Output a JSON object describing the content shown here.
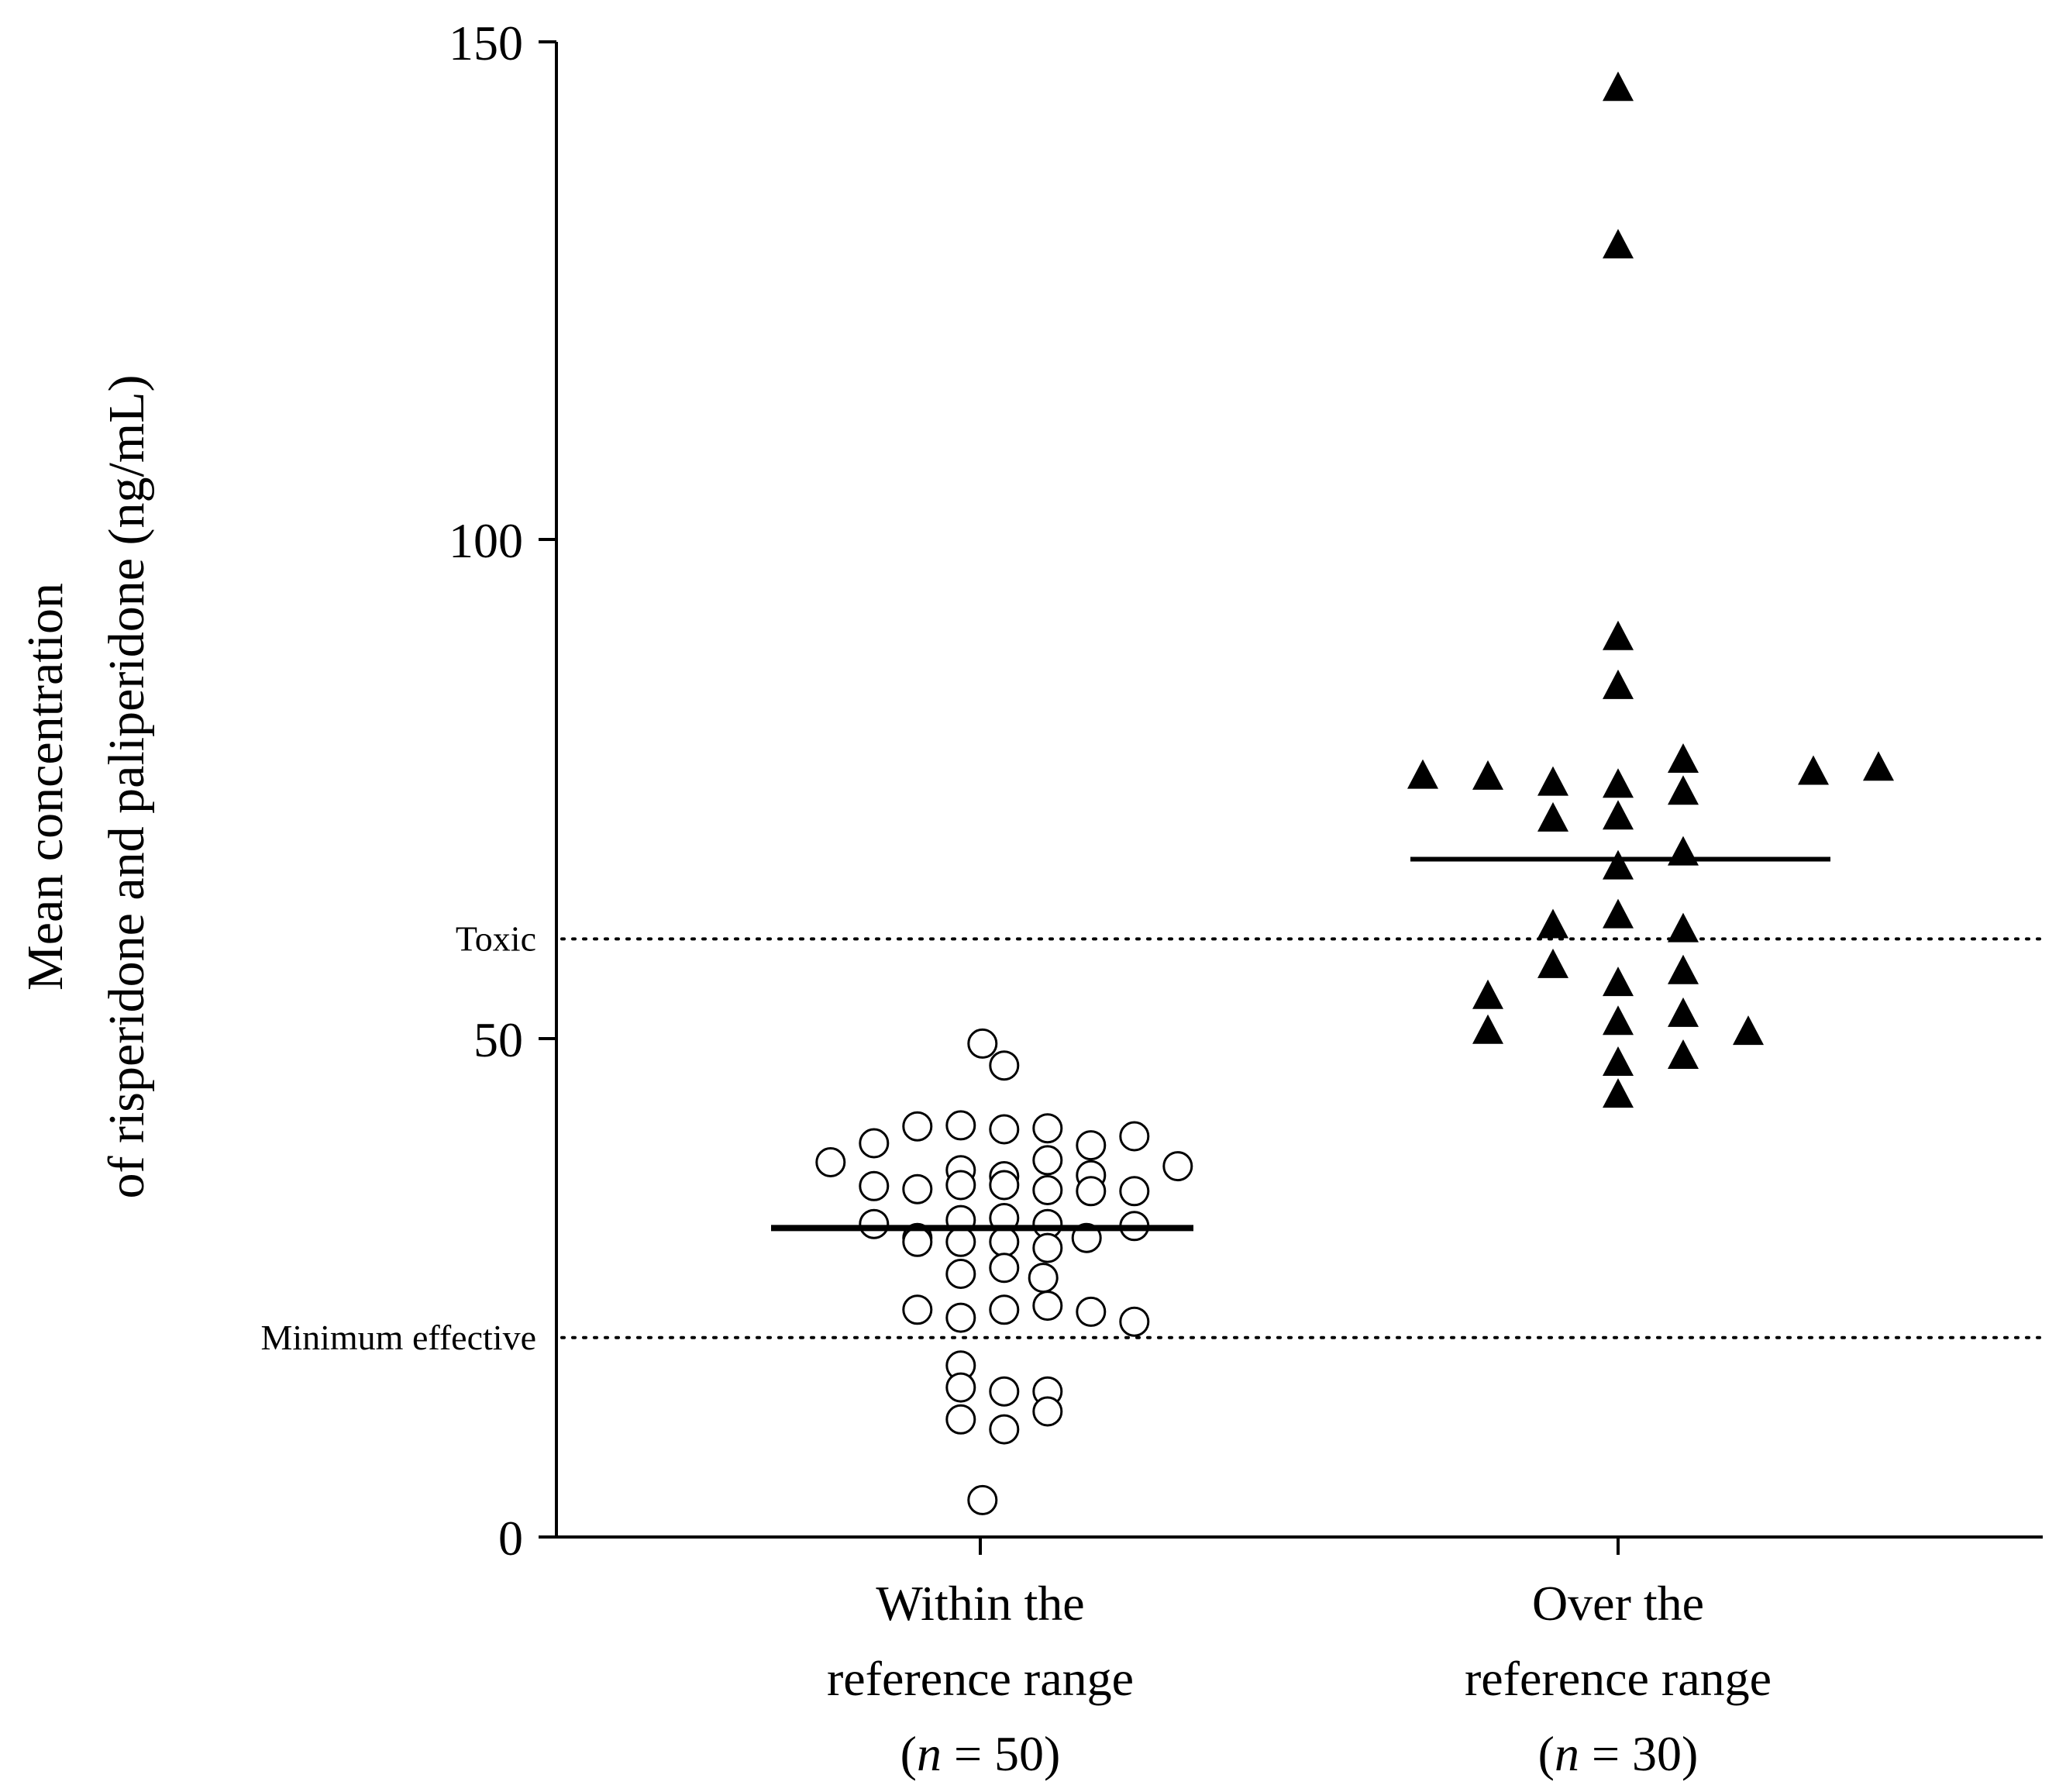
{
  "chart_data": {
    "type": "scatter",
    "ylabel_lines": [
      "Mean concentration",
      "of risperidone and paliperidone (ng/mL)"
    ],
    "ylim": [
      0,
      150
    ],
    "yticks": [
      0,
      50,
      100,
      150
    ],
    "reference_lines": [
      {
        "label": "Toxic",
        "value": 60,
        "style": "dotted"
      },
      {
        "label": "Minimum effective",
        "value": 20,
        "style": "dotted"
      }
    ],
    "groups": [
      {
        "name": "Within the reference range",
        "label_lines": [
          "Within the",
          "reference range"
        ],
        "n_text": {
          "open": "(",
          "n": "n",
          "rest": " = 50)"
        },
        "marker": "open-circle",
        "median": 31,
        "points": [
          [
            0.05,
            49.5
          ],
          [
            0.55,
            47.3
          ],
          [
            -1.45,
            41.2
          ],
          [
            -0.45,
            41.3
          ],
          [
            0.55,
            40.9
          ],
          [
            1.55,
            41.0
          ],
          [
            -2.45,
            39.5
          ],
          [
            2.55,
            39.3
          ],
          [
            3.55,
            40.2
          ],
          [
            -3.45,
            37.6
          ],
          [
            0.55,
            36.2
          ],
          [
            -0.45,
            36.8
          ],
          [
            1.55,
            37.8
          ],
          [
            2.55,
            36.3
          ],
          [
            4.55,
            37.2
          ],
          [
            -2.45,
            35.2
          ],
          [
            -1.45,
            34.9
          ],
          [
            -0.45,
            35.3
          ],
          [
            0.55,
            35.3
          ],
          [
            1.55,
            34.8
          ],
          [
            2.55,
            34.7
          ],
          [
            3.55,
            34.7
          ],
          [
            -2.45,
            31.4
          ],
          [
            -1.45,
            30.0
          ],
          [
            0.55,
            32.0
          ],
          [
            -0.45,
            31.8
          ],
          [
            1.55,
            31.4
          ],
          [
            3.55,
            31.2
          ],
          [
            -1.45,
            29.6
          ],
          [
            -0.45,
            29.6
          ],
          [
            0.55,
            29.6
          ],
          [
            1.55,
            29.0
          ],
          [
            2.45,
            30.0
          ],
          [
            -0.45,
            26.4
          ],
          [
            1.45,
            26.0
          ],
          [
            0.55,
            27.0
          ],
          [
            -1.45,
            22.8
          ],
          [
            -0.45,
            22.0
          ],
          [
            0.55,
            22.8
          ],
          [
            1.55,
            23.2
          ],
          [
            2.55,
            22.6
          ],
          [
            3.55,
            21.6
          ],
          [
            -0.45,
            17.2
          ],
          [
            -0.45,
            15.0
          ],
          [
            0.55,
            14.6
          ],
          [
            1.55,
            14.6
          ],
          [
            -0.45,
            11.8
          ],
          [
            0.55,
            10.8
          ],
          [
            1.55,
            12.6
          ],
          [
            0.05,
            3.7
          ]
        ]
      },
      {
        "name": "Over the reference range",
        "label_lines": [
          "Over the",
          "reference range"
        ],
        "n_text": {
          "open": "(",
          "n": "n",
          "rest": " = 30)"
        },
        "marker": "filled-triangle",
        "median": 68,
        "points": [
          [
            0,
            145.4
          ],
          [
            0,
            129.6
          ],
          [
            0,
            90.3
          ],
          [
            0,
            85.4
          ],
          [
            1.5,
            78.0
          ],
          [
            -4.5,
            76.4
          ],
          [
            -3.0,
            76.3
          ],
          [
            4.5,
            76.8
          ],
          [
            6.0,
            77.2
          ],
          [
            -1.5,
            75.7
          ],
          [
            0,
            75.5
          ],
          [
            1.5,
            74.8
          ],
          [
            -1.5,
            72.1
          ],
          [
            0,
            72.3
          ],
          [
            1.5,
            68.7
          ],
          [
            0,
            67.3
          ],
          [
            -1.5,
            61.4
          ],
          [
            0,
            62.4
          ],
          [
            1.5,
            61.0
          ],
          [
            -1.5,
            57.4
          ],
          [
            0,
            55.6
          ],
          [
            1.5,
            56.8
          ],
          [
            -3.0,
            54.3
          ],
          [
            0,
            51.7
          ],
          [
            1.5,
            52.5
          ],
          [
            -3.0,
            50.8
          ],
          [
            3.0,
            50.7
          ],
          [
            0,
            47.6
          ],
          [
            1.5,
            48.3
          ],
          [
            0,
            44.4
          ]
        ]
      }
    ]
  }
}
